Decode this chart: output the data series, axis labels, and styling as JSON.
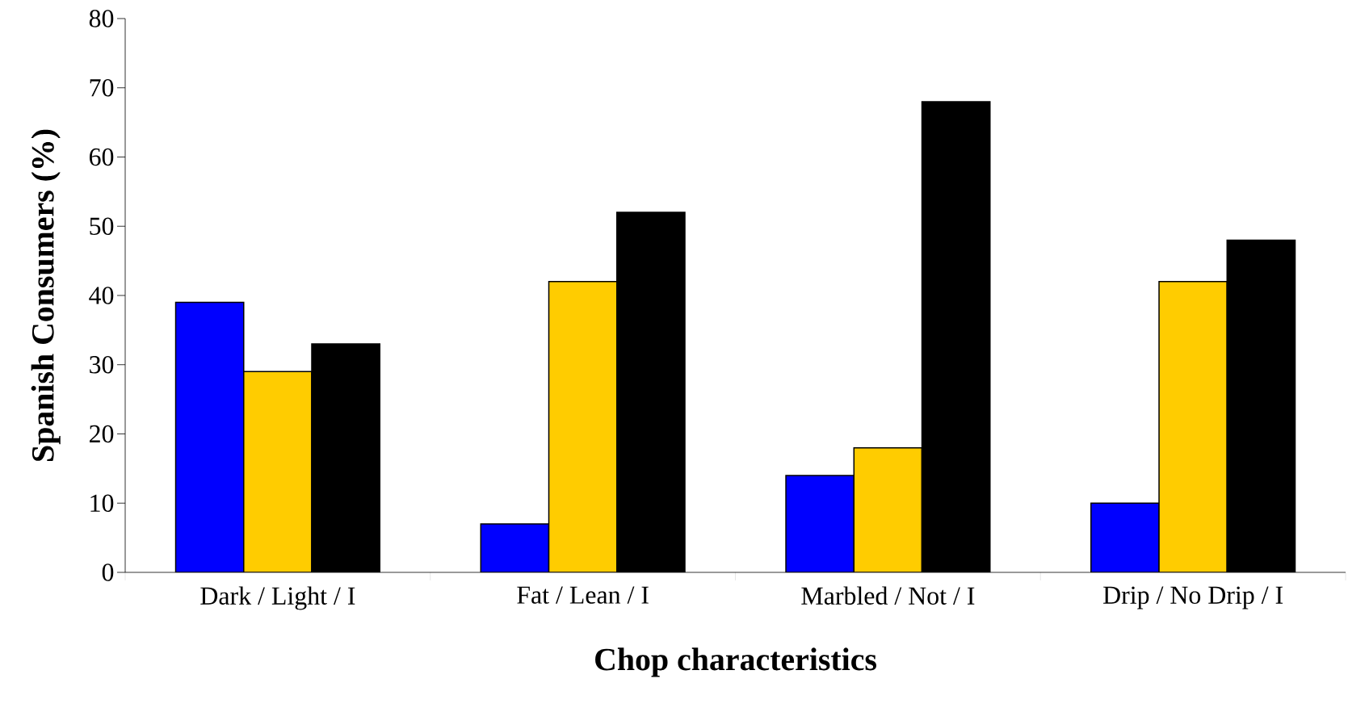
{
  "chart_data": {
    "type": "bar",
    "xlabel": "Chop characteristics",
    "ylabel": "Spanish Consumers (%)",
    "categories": [
      "Dark / Light / I",
      "Fat / Lean / I",
      "Marbled / Not / I",
      "Drip / No Drip / I"
    ],
    "series": [
      {
        "color": "#0000ff",
        "values": [
          39,
          7,
          14,
          10
        ]
      },
      {
        "color": "#ffcc00",
        "values": [
          29,
          42,
          18,
          42
        ]
      },
      {
        "color": "#000000",
        "values": [
          33,
          52,
          68,
          48
        ]
      }
    ],
    "ylim": [
      0,
      80
    ],
    "yticks": [
      0,
      10,
      20,
      30,
      40,
      50,
      60,
      70,
      80
    ]
  }
}
